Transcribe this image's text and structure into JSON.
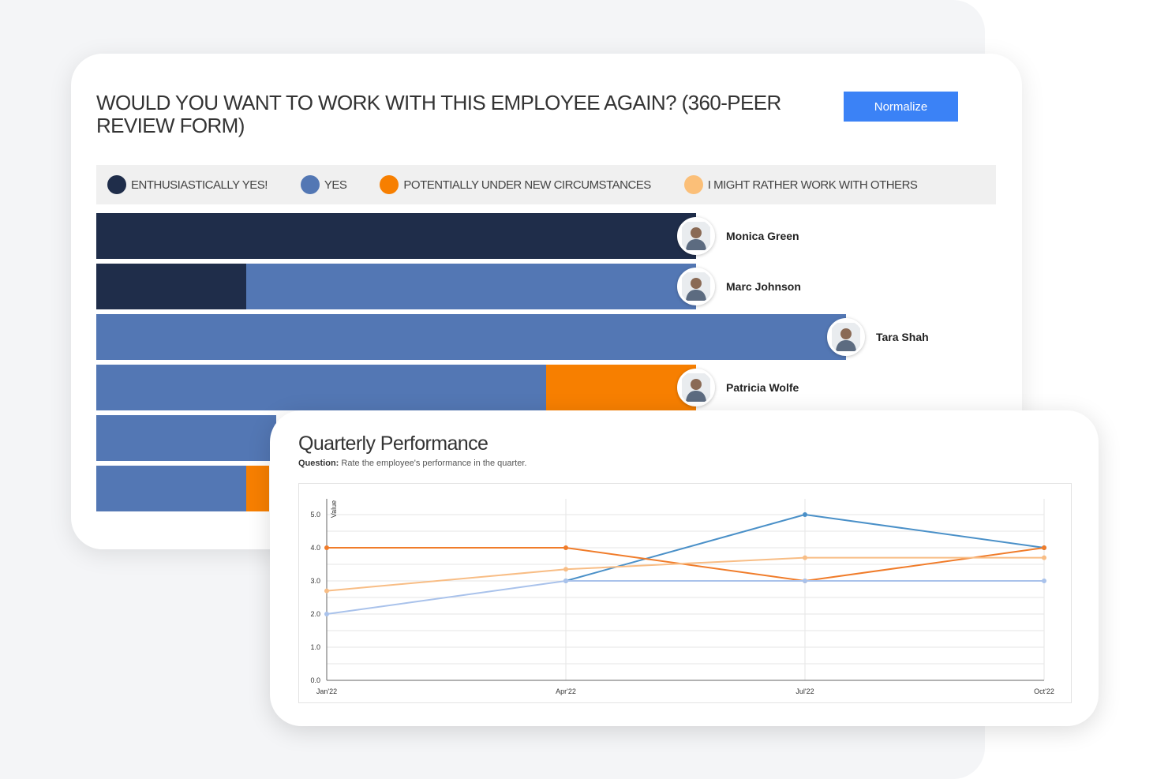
{
  "review_card": {
    "title": "WOULD YOU WANT TO WORK WITH THIS EMPLOYEE AGAIN? (360-PEER REVIEW FORM)",
    "normalize_label": "Normalize",
    "legend": [
      {
        "label": "ENTHUSIASTICALLY YES!",
        "color": "#1f2d4a"
      },
      {
        "label": "YES",
        "color": "#5377b4"
      },
      {
        "label": "POTENTIALLY UNDER NEW CIRCUMSTANCES",
        "color": "#f77f00"
      },
      {
        "label": "I MIGHT RATHER WORK WITH OTHERS",
        "color": "#fbbf78"
      }
    ],
    "people": [
      {
        "name": "Monica Green",
        "avatar_icon": "person-avatar-icon"
      },
      {
        "name": "Marc Johnson",
        "avatar_icon": "person-avatar-icon"
      },
      {
        "name": "Tara Shah",
        "avatar_icon": "person-avatar-icon"
      },
      {
        "name": "Patricia Wolfe",
        "avatar_icon": "person-avatar-icon"
      }
    ]
  },
  "performance_card": {
    "title": "Quarterly Performance",
    "question_label": "Question:",
    "question_text": "Rate the employee's performance in the quarter."
  },
  "chart_data": [
    {
      "type": "bar",
      "orientation": "horizontal",
      "stacked": true,
      "categories": [
        "Monica Green",
        "Marc Johnson",
        "Tara Shah",
        "Patricia Wolfe",
        "",
        ""
      ],
      "series": [
        {
          "name": "ENTHUSIASTICALLY YES!",
          "color": "#1f2d4a",
          "values": [
            4,
            1,
            0,
            0,
            0,
            0
          ]
        },
        {
          "name": "YES",
          "color": "#5377b4",
          "values": [
            0,
            3,
            5,
            3,
            1.2,
            1
          ]
        },
        {
          "name": "POTENTIALLY UNDER NEW CIRCUMSTANCES",
          "color": "#f77f00",
          "values": [
            0,
            0,
            0,
            1,
            0,
            0.15
          ]
        },
        {
          "name": "I MIGHT RATHER WORK WITH OTHERS",
          "color": "#fbbf78",
          "values": [
            0,
            0,
            0,
            0,
            0,
            0
          ]
        }
      ],
      "legend": "top"
    },
    {
      "type": "line",
      "x": [
        "Jan'22",
        "Apr'22",
        "Jul'22",
        "Oct'22"
      ],
      "ylabel": "Value",
      "ylim": [
        0,
        5
      ],
      "yticks": [
        "0.0",
        "1.0",
        "2.0",
        "3.0",
        "4.0",
        "5.0"
      ],
      "grid": true,
      "series": [
        {
          "color": "#4a90c8",
          "values": [
            null,
            3.0,
            5.0,
            4.0
          ]
        },
        {
          "color": "#f07c2a",
          "values": [
            4.0,
            4.0,
            3.0,
            4.0
          ]
        },
        {
          "color": "#f8bd85",
          "values": [
            2.7,
            3.35,
            3.7,
            3.7
          ]
        },
        {
          "color": "#a9c2eb",
          "values": [
            2.0,
            3.0,
            3.0,
            3.0
          ]
        }
      ]
    }
  ]
}
